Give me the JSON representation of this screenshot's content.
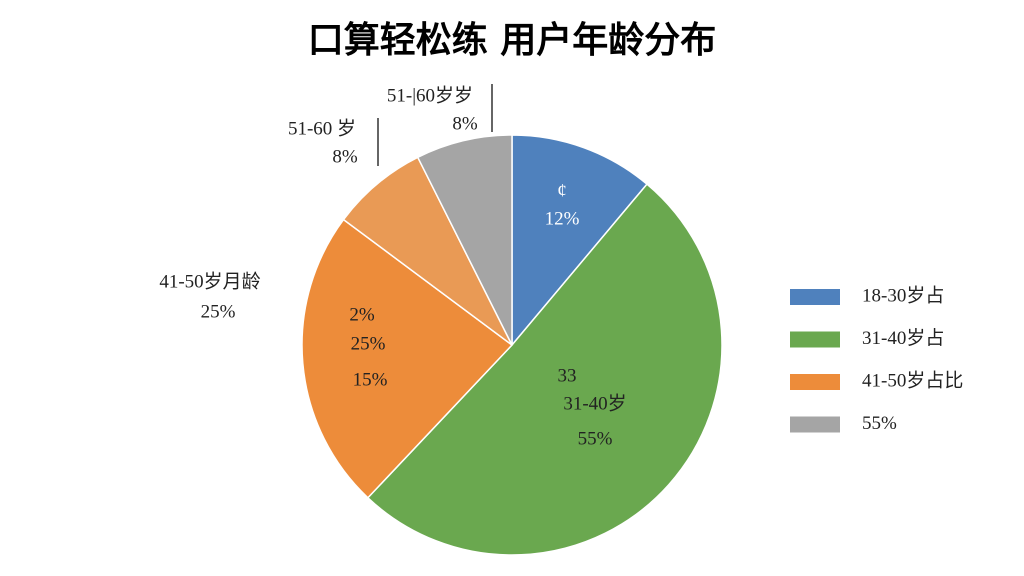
{
  "chart_data": {
    "type": "pie",
    "title": "口算轻松练 用户年龄分布",
    "categories": [
      null,
      "31-40岁",
      "41-50岁月龄",
      "51-60 岁",
      "51-|60岁岁"
    ],
    "values": [
      12,
      55,
      25,
      8,
      8
    ],
    "value_labels": [
      "12%",
      "55%",
      "25%",
      "8%",
      "8%"
    ],
    "colors": [
      "#4f81bd",
      "#6aa84f",
      "#ed8c3a",
      "#e99a55",
      "#a5a5a5"
    ],
    "annotations": [
      "¢",
      "33",
      "2%",
      "15%"
    ],
    "legend": [
      {
        "label": "18-30岁占",
        "color": "#4f81bd"
      },
      {
        "label": "31-40岁占",
        "color": "#6aa84f"
      },
      {
        "label": "41-50岁占比",
        "color": "#ed8c3a"
      },
      {
        "label": "55%",
        "color": "#a5a5a5"
      }
    ]
  }
}
